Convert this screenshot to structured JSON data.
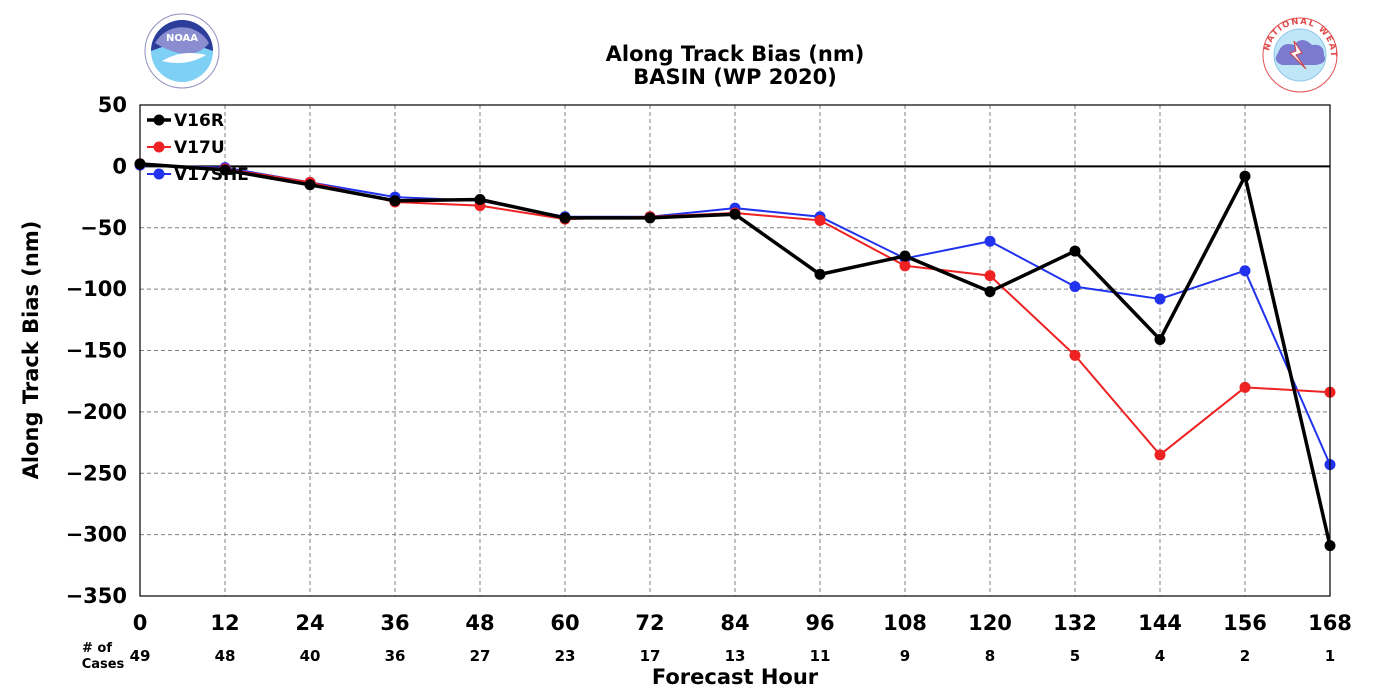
{
  "chart_data": {
    "type": "line",
    "title": "Along Track Bias (nm)",
    "subtitle": "BASIN (WP 2020)",
    "xlabel": "Forecast Hour",
    "ylabel": "Along Track Bias (nm)",
    "x": [
      0,
      12,
      24,
      36,
      48,
      60,
      72,
      84,
      96,
      108,
      120,
      132,
      144,
      156,
      168
    ],
    "x_ticks": [
      "0",
      "12",
      "24",
      "36",
      "48",
      "60",
      "72",
      "84",
      "96",
      "108",
      "120",
      "132",
      "144",
      "156",
      "168"
    ],
    "xlim": [
      0,
      168
    ],
    "ylim": [
      -350,
      50
    ],
    "y_ticks": [
      50,
      0,
      -50,
      -100,
      -150,
      -200,
      -250,
      -300,
      -350
    ],
    "y_tick_labels": [
      "50",
      "0",
      "−50",
      "−100",
      "−150",
      "−200",
      "−250",
      "−300",
      "−350"
    ],
    "grid": true,
    "legend": "top-left",
    "cases_header": [
      "# of",
      "Cases"
    ],
    "cases": [
      "49",
      "48",
      "40",
      "36",
      "27",
      "23",
      "17",
      "13",
      "11",
      "9",
      "8",
      "5",
      "4",
      "2",
      "1"
    ],
    "series": [
      {
        "name": "V16R",
        "color": "#000000",
        "values": [
          2,
          -3,
          -15,
          -28,
          -27,
          -42,
          -42,
          -39,
          -88,
          -73,
          -102,
          -69,
          -141,
          -8,
          -309
        ]
      },
      {
        "name": "V17U",
        "color": "#ee2222",
        "values": [
          2,
          -2,
          -13,
          -29,
          -32,
          -43,
          -41,
          -38,
          -44,
          -81,
          -89,
          -154,
          -235,
          -180,
          -184
        ]
      },
      {
        "name": "V17SHE",
        "color": "#2233ee",
        "values": [
          1,
          -1,
          -13,
          -25,
          -28,
          -41,
          -41,
          -34,
          -41,
          -75,
          -61,
          -98,
          -108,
          -85,
          -243
        ]
      }
    ]
  },
  "logos": {
    "left": {
      "icon": "noaa-logo-icon",
      "text": "NOAA"
    },
    "right": {
      "icon": "nws-logo-icon",
      "text": "NATIONAL WEATHER SERVICE"
    }
  }
}
